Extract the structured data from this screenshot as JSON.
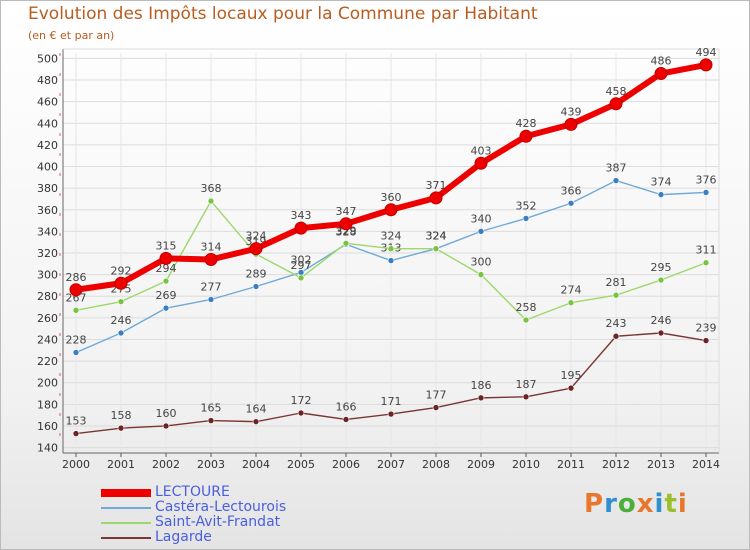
{
  "header": {
    "title": "Evolution des Impôts locaux pour la Commune par Habitant",
    "subtitle": "(en € et par an)"
  },
  "logo": {
    "text": "Proxiti",
    "colors": [
      "#e8772e",
      "#2f8fd1",
      "#4caf3a",
      "#e8772e",
      "#2f8fd1",
      "#9bbf2a",
      "#e8772e"
    ]
  },
  "chart_data": {
    "type": "line",
    "title": "Evolution des Impôts locaux pour la Commune par Habitant",
    "subtitle": "(en € et par an)",
    "xlabel": "",
    "ylabel": "",
    "x": [
      "2000",
      "2001",
      "2002",
      "2003",
      "2004",
      "2005",
      "2006",
      "2007",
      "2008",
      "2009",
      "2010",
      "2011",
      "2012",
      "2013",
      "2014"
    ],
    "yticks": [
      140,
      160,
      180,
      200,
      220,
      240,
      260,
      280,
      300,
      320,
      340,
      360,
      380,
      400,
      420,
      440,
      460,
      480,
      500
    ],
    "ylim": [
      135,
      505
    ],
    "grid": true,
    "legend_position": "bottom-left",
    "series": [
      {
        "name": "LECTOURE",
        "color": "#ee0000",
        "bold": true,
        "values": [
          286,
          292,
          315,
          314,
          324,
          343,
          347,
          360,
          371,
          403,
          428,
          439,
          458,
          486,
          494
        ]
      },
      {
        "name": "Castéra-Lectourois",
        "color": "#6ea9d8",
        "marker": "#3a7fc4",
        "values": [
          228,
          246,
          269,
          277,
          289,
          302,
          328,
          313,
          324,
          340,
          352,
          366,
          387,
          374,
          376
        ]
      },
      {
        "name": "Saint-Avit-Frandat",
        "color": "#9cd86a",
        "marker": "#79c242",
        "values": [
          267,
          275,
          294,
          368,
          319,
          297,
          329,
          324,
          324,
          300,
          258,
          274,
          281,
          295,
          311
        ]
      },
      {
        "name": "Lagarde",
        "color": "#7a3535",
        "marker": "#6b2323",
        "values": [
          153,
          158,
          160,
          165,
          164,
          172,
          166,
          171,
          177,
          186,
          187,
          195,
          243,
          246,
          239
        ]
      }
    ]
  }
}
